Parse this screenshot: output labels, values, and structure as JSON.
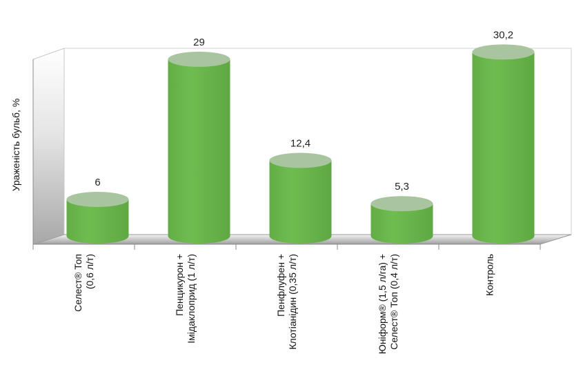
{
  "chart_data": {
    "type": "bar",
    "style": "3d-cylinder",
    "ylabel": "Ураженість бульб, %",
    "xlabel": "",
    "ylim": [
      0,
      32
    ],
    "grid": false,
    "categories": [
      [
        "Селест® Топ",
        "(0,6 л/т)"
      ],
      [
        "Пенцикурон +",
        "Імідаклоприд (1 л/т)"
      ],
      [
        "Пенфлуфен +",
        "Клотіанідин (0,35 л/т)"
      ],
      [
        "Юніформ® (1,5 л/га) +",
        "Селест® Топ (0,4 л/т)"
      ],
      [
        "Контроль"
      ]
    ],
    "values": [
      6,
      29,
      12.4,
      5.3,
      30.2
    ],
    "value_labels": [
      "6",
      "29",
      "12,4",
      "5,3",
      "30,2"
    ],
    "colors": {
      "bar_body": "#6db84f",
      "bar_top": "#a9c5a0",
      "axis_line": "#8a8a8a"
    }
  }
}
